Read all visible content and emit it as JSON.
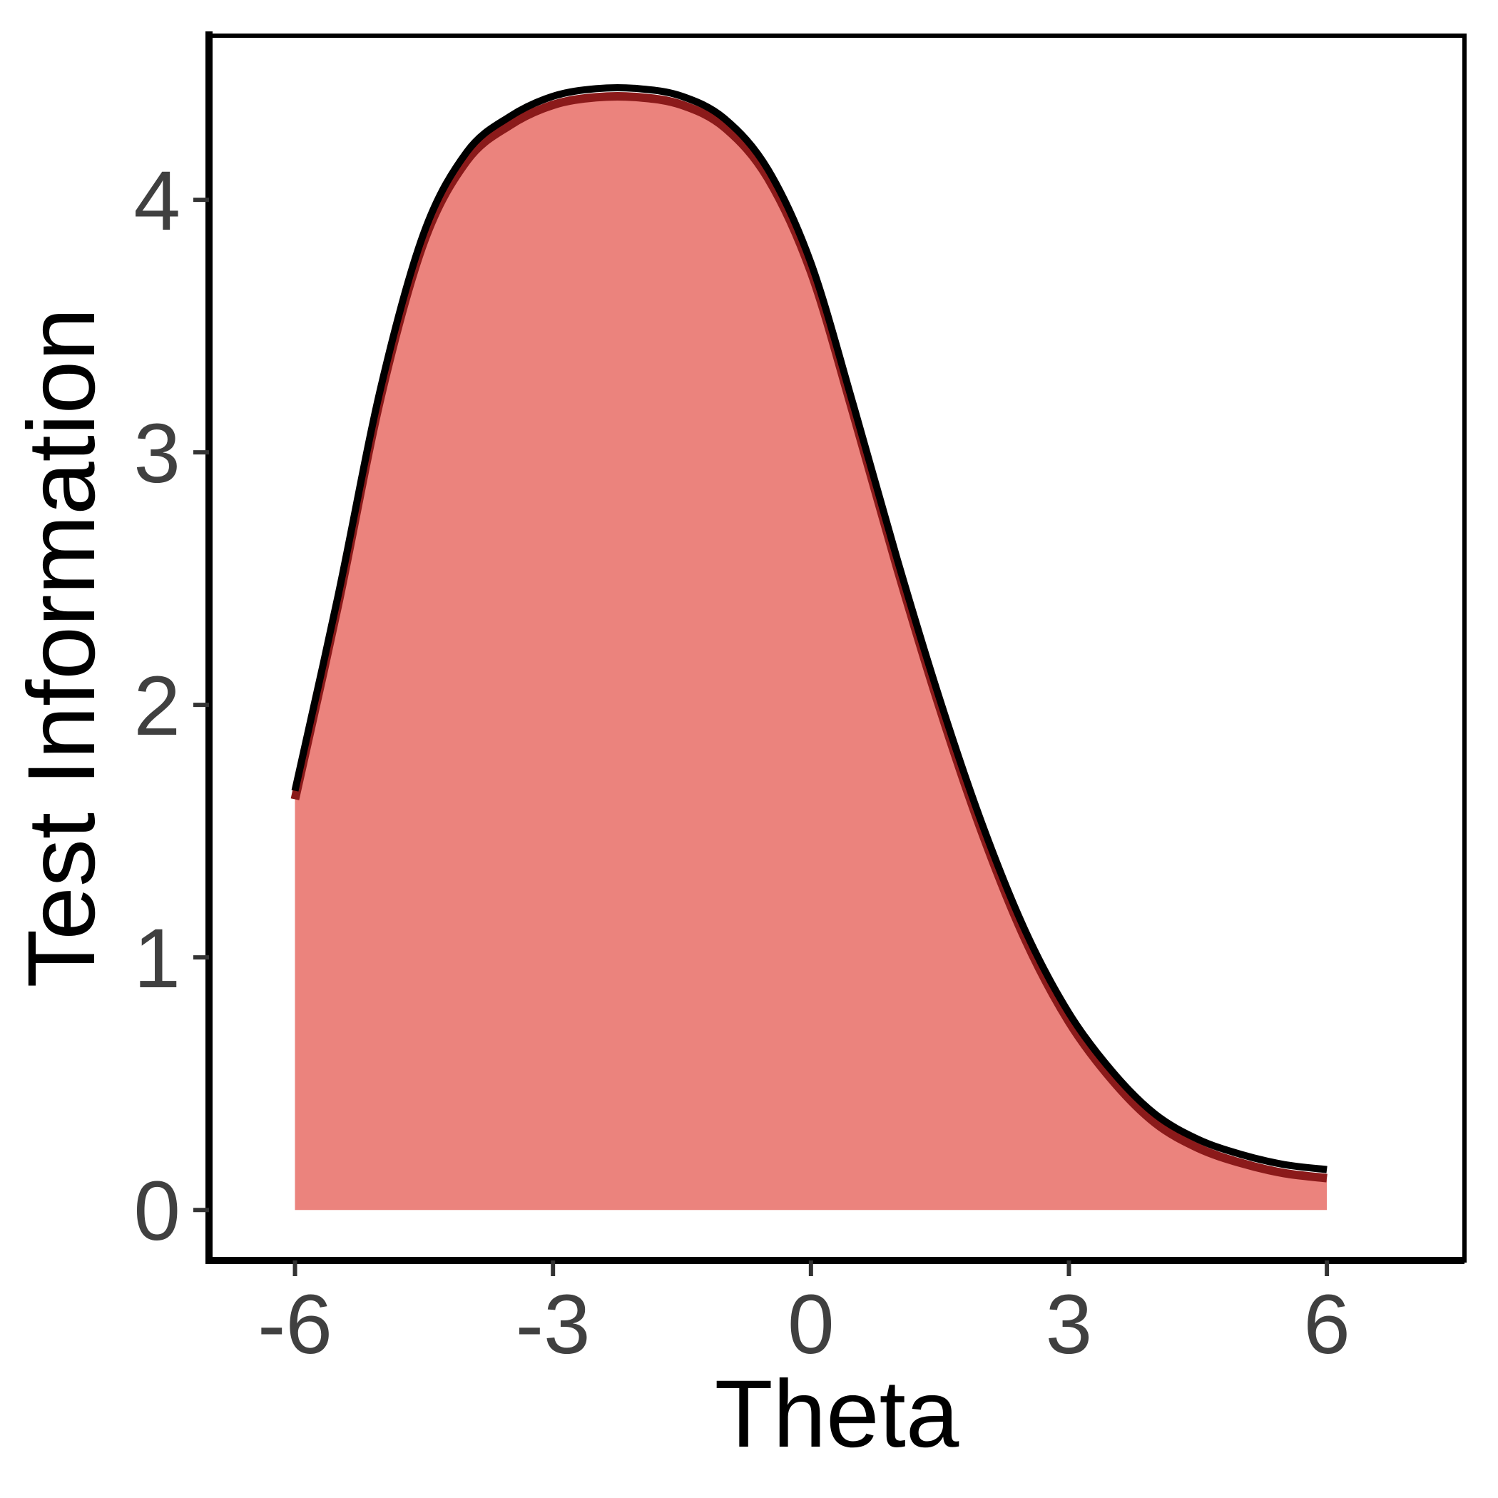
{
  "chart_data": {
    "type": "area",
    "title": "",
    "xlabel": "Theta",
    "ylabel": "Test Information",
    "xlim": [
      -7.0,
      7.6
    ],
    "ylim": [
      -0.2,
      4.65
    ],
    "xticks": [
      -6,
      -3,
      0,
      3,
      6
    ],
    "yticks": [
      0,
      1,
      2,
      3,
      4
    ],
    "xtick_labels": [
      "-6",
      "-3",
      "0",
      "3",
      "6"
    ],
    "ytick_labels": [
      "0",
      "1",
      "2",
      "3",
      "4"
    ],
    "grid": false,
    "legend": "none",
    "series": [
      {
        "x": [
          -6.0,
          -5.5,
          -5.0,
          -4.5,
          -4.0,
          -3.5,
          -3.0,
          -2.5,
          -2.0,
          -1.5,
          -1.0,
          -0.5,
          0.0,
          0.5,
          1.0,
          1.5,
          2.0,
          2.5,
          3.0,
          3.5,
          4.0,
          4.5,
          5.0,
          5.5,
          6.0
        ],
        "y": [
          1.66,
          2.43,
          3.26,
          3.87,
          4.19,
          4.33,
          4.41,
          4.44,
          4.44,
          4.41,
          4.32,
          4.12,
          3.75,
          3.18,
          2.58,
          2.02,
          1.52,
          1.1,
          0.78,
          0.55,
          0.38,
          0.28,
          0.22,
          0.18,
          0.16
        ]
      }
    ],
    "colors": {
      "fill": "#eb837d",
      "fill_edge": "#8b1a1a",
      "line": "#000000",
      "axis": "#000000",
      "tick": "#333333"
    }
  }
}
